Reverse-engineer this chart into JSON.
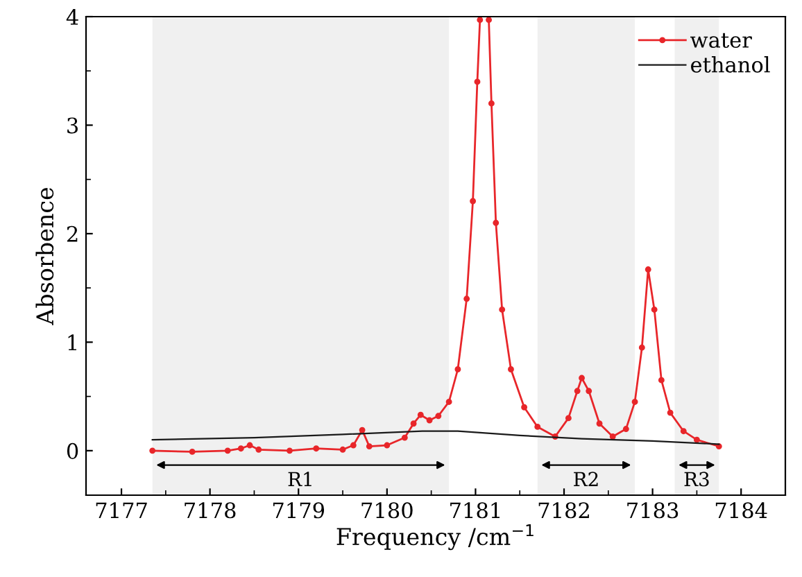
{
  "chart_data": {
    "type": "line",
    "xlabel": "Frequency /cm$^{−1}$",
    "ylabel": "Absorbence",
    "xlim": [
      7176.6,
      7184.5
    ],
    "ylim": [
      -0.41,
      4
    ],
    "xticks": [
      7177,
      7178,
      7179,
      7180,
      7181,
      7182,
      7183,
      7184
    ],
    "yticks": [
      0,
      1,
      2,
      3,
      4
    ],
    "grid": false,
    "legend": "top right",
    "series": [
      {
        "name": "water",
        "color": "#e8262a",
        "marker": "circle",
        "x": [
          7177.35,
          7177.8,
          7178.2,
          7178.35,
          7178.45,
          7178.55,
          7178.9,
          7179.2,
          7179.5,
          7179.62,
          7179.72,
          7179.8,
          7180.0,
          7180.2,
          7180.3,
          7180.38,
          7180.48,
          7180.58,
          7180.7,
          7180.8,
          7180.9,
          7180.97,
          7181.02,
          7181.05,
          7181.1,
          7181.15,
          7181.18,
          7181.23,
          7181.3,
          7181.4,
          7181.55,
          7181.7,
          7181.9,
          7182.05,
          7182.15,
          7182.2,
          7182.28,
          7182.4,
          7182.55,
          7182.7,
          7182.8,
          7182.88,
          7182.95,
          7183.02,
          7183.1,
          7183.2,
          7183.35,
          7183.5,
          7183.75
        ],
        "values": [
          0.0,
          -0.01,
          0.0,
          0.02,
          0.05,
          0.01,
          0.0,
          0.02,
          0.01,
          0.05,
          0.19,
          0.04,
          0.05,
          0.12,
          0.25,
          0.33,
          0.28,
          0.32,
          0.45,
          0.75,
          1.4,
          2.3,
          3.4,
          3.97,
          null,
          3.97,
          3.2,
          2.1,
          1.3,
          0.75,
          0.4,
          0.22,
          0.13,
          0.3,
          0.55,
          0.67,
          0.55,
          0.25,
          0.13,
          0.2,
          0.45,
          0.95,
          1.67,
          1.3,
          0.65,
          0.35,
          0.18,
          0.1,
          0.04
        ]
      },
      {
        "name": "ethanol",
        "color": "#1a1a1a",
        "marker": "none",
        "x": [
          7177.35,
          7178.5,
          7179.5,
          7180.4,
          7180.8,
          7181.5,
          7182.2,
          7183.0,
          7183.75
        ],
        "values": [
          0.1,
          0.12,
          0.15,
          0.18,
          0.18,
          0.14,
          0.11,
          0.09,
          0.06
        ]
      }
    ],
    "bands": [
      {
        "axis": "x",
        "from": 7177.35,
        "to": 7180.7,
        "label": "R1"
      },
      {
        "axis": "x",
        "from": 7181.7,
        "to": 7182.8,
        "label": "R2"
      },
      {
        "axis": "x",
        "from": 7183.25,
        "to": 7183.75,
        "label": "R3"
      }
    ]
  }
}
